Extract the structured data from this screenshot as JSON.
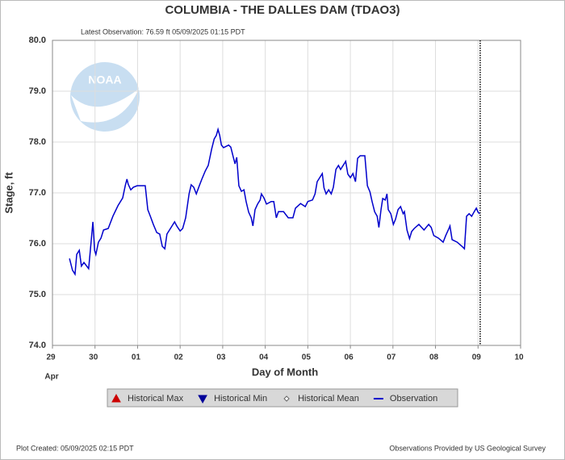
{
  "chart_data": {
    "type": "line",
    "title": "COLUMBIA - THE DALLES DAM  (TDAO3)",
    "subtitle": "Latest Observation: 76.59 ft 05/09/2025 01:15 PDT",
    "x_label": "Day of Month",
    "x_month_label": "Apr",
    "y_label": "Stage, ft",
    "logo_text": "NOAA",
    "footer_left": "Plot Created: 05/09/2025 02:15 PDT",
    "footer_right": "Observations Provided by US Geological Survey",
    "grid": true,
    "xlim": [
      0,
      11
    ],
    "xticks": [
      {
        "value": 0,
        "label": "29"
      },
      {
        "value": 1,
        "label": "30"
      },
      {
        "value": 2,
        "label": "01"
      },
      {
        "value": 3,
        "label": "02"
      },
      {
        "value": 4,
        "label": "03"
      },
      {
        "value": 5,
        "label": "04"
      },
      {
        "value": 6,
        "label": "05"
      },
      {
        "value": 7,
        "label": "06"
      },
      {
        "value": 8,
        "label": "07"
      },
      {
        "value": 9,
        "label": "08"
      },
      {
        "value": 10,
        "label": "09"
      },
      {
        "value": 11,
        "label": "10"
      }
    ],
    "ylim": [
      74,
      80
    ],
    "yticks": [
      {
        "value": 74,
        "label": "74.0"
      },
      {
        "value": 75,
        "label": "75.0"
      },
      {
        "value": 76,
        "label": "76.0"
      },
      {
        "value": 77,
        "label": "77.0"
      },
      {
        "value": 78,
        "label": "78.0"
      },
      {
        "value": 79,
        "label": "79.0"
      },
      {
        "value": 80,
        "label": "80.0"
      }
    ],
    "latest_observation_x": 10.05,
    "legend_markers": [
      {
        "name": "Historical Max",
        "color": "#cc0000",
        "marker": "triangle-up"
      },
      {
        "name": "Historical Min",
        "color": "#000099",
        "marker": "triangle-down"
      },
      {
        "name": "Historical Mean",
        "color": "#666666",
        "marker": "diamond"
      }
    ],
    "x": [
      0.4,
      0.47,
      0.53,
      0.57,
      0.63,
      0.68,
      0.74,
      0.85,
      0.89,
      0.95,
      0.99,
      1.02,
      1.08,
      1.14,
      1.2,
      1.31,
      1.42,
      1.54,
      1.65,
      1.71,
      1.75,
      1.78,
      1.84,
      1.9,
      1.99,
      2.18,
      2.24,
      2.3,
      2.37,
      2.45,
      2.52,
      2.58,
      2.64,
      2.69,
      2.75,
      2.87,
      2.92,
      3.0,
      3.06,
      3.13,
      3.21,
      3.26,
      3.32,
      3.38,
      3.45,
      3.51,
      3.59,
      3.66,
      3.74,
      3.8,
      3.85,
      3.89,
      3.93,
      3.97,
      4.02,
      4.14,
      4.19,
      4.25,
      4.29,
      4.33,
      4.38,
      4.44,
      4.5,
      4.55,
      4.61,
      4.67,
      4.71,
      4.76,
      4.82,
      4.88,
      4.91,
      4.97,
      5.03,
      5.14,
      5.2,
      5.26,
      5.31,
      5.43,
      5.54,
      5.65,
      5.71,
      5.83,
      5.94,
      6.0,
      6.11,
      6.17,
      6.22,
      6.28,
      6.34,
      6.38,
      6.43,
      6.49,
      6.55,
      6.6,
      6.66,
      6.72,
      6.77,
      6.89,
      6.94,
      7.0,
      7.06,
      7.12,
      7.17,
      7.23,
      7.34,
      7.4,
      7.46,
      7.51,
      7.57,
      7.63,
      7.67,
      7.72,
      7.76,
      7.82,
      7.86,
      7.89,
      7.95,
      8.01,
      8.06,
      8.12,
      8.18,
      8.24,
      8.27,
      8.33,
      8.39,
      8.44,
      8.5,
      8.61,
      8.73,
      8.84,
      8.9,
      8.96,
      9.07,
      9.18,
      9.24,
      9.3,
      9.34,
      9.39,
      9.51,
      9.62,
      9.68,
      9.73,
      9.79,
      9.85,
      9.91,
      9.96,
      10.0,
      10.04
    ],
    "series": [
      {
        "name": "Observation",
        "color": "#0000cc",
        "values": [
          75.71,
          75.48,
          75.4,
          75.79,
          75.87,
          75.56,
          75.63,
          75.51,
          75.87,
          76.43,
          75.87,
          75.79,
          76.03,
          76.11,
          76.27,
          76.3,
          76.54,
          76.75,
          76.9,
          77.14,
          77.27,
          77.17,
          77.06,
          77.11,
          77.14,
          77.14,
          76.67,
          76.54,
          76.38,
          76.22,
          76.19,
          75.95,
          75.9,
          76.19,
          76.27,
          76.43,
          76.35,
          76.25,
          76.3,
          76.51,
          76.98,
          77.16,
          77.11,
          76.98,
          77.14,
          77.27,
          77.43,
          77.54,
          77.86,
          78.06,
          78.13,
          78.25,
          78.13,
          77.94,
          77.89,
          77.94,
          77.9,
          77.7,
          77.57,
          77.7,
          77.14,
          77.03,
          77.06,
          76.83,
          76.62,
          76.51,
          76.35,
          76.67,
          76.78,
          76.86,
          76.98,
          76.9,
          76.78,
          76.83,
          76.83,
          76.51,
          76.63,
          76.63,
          76.51,
          76.51,
          76.7,
          76.79,
          76.73,
          76.83,
          76.86,
          76.98,
          77.22,
          77.3,
          77.38,
          77.1,
          76.98,
          77.06,
          76.98,
          77.11,
          77.46,
          77.54,
          77.46,
          77.62,
          77.37,
          77.3,
          77.38,
          77.22,
          77.68,
          77.73,
          77.73,
          77.14,
          77.02,
          76.83,
          76.63,
          76.54,
          76.32,
          76.67,
          76.89,
          76.86,
          76.98,
          76.67,
          76.59,
          76.38,
          76.48,
          76.67,
          76.73,
          76.59,
          76.63,
          76.27,
          76.1,
          76.24,
          76.3,
          76.38,
          76.27,
          76.38,
          76.32,
          76.16,
          76.11,
          76.03,
          76.16,
          76.27,
          76.35,
          76.08,
          76.03,
          75.95,
          75.9,
          76.54,
          76.59,
          76.54,
          76.63,
          76.7,
          76.62,
          76.59
        ]
      }
    ]
  }
}
